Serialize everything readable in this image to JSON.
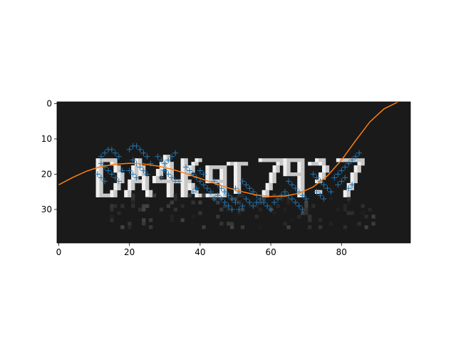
{
  "chart_data": {
    "type": "scatter",
    "title": "",
    "xlabel": "",
    "ylabel": "",
    "xlim": [
      -0.5,
      99.5
    ],
    "ylim": [
      39.5,
      -0.5
    ],
    "y_axis_inverted": true,
    "grid": false,
    "legend": "none",
    "x_ticks": [
      0,
      20,
      40,
      60,
      80
    ],
    "y_ticks": [
      0,
      10,
      20,
      30
    ],
    "background_image": {
      "description_kind": "grayscale captcha bitmap",
      "text": "DA4KgI79?7",
      "width": 100,
      "height": 40,
      "background_gray": "#1a1a1a",
      "text_color": "#f0f0f0"
    },
    "colors": {
      "markers": "#1f77b4",
      "curve": "#ff7f0e"
    },
    "marker_style": "plus",
    "series": [
      {
        "type": "scatter",
        "points": [
          [
            12,
            15
          ],
          [
            13,
            14
          ],
          [
            14,
            13
          ],
          [
            15,
            13
          ],
          [
            16,
            14
          ],
          [
            17,
            15
          ],
          [
            12,
            17
          ],
          [
            13,
            18
          ],
          [
            14,
            19
          ],
          [
            15,
            20
          ],
          [
            16,
            21
          ],
          [
            17,
            22
          ],
          [
            18,
            19
          ],
          [
            11,
            20
          ],
          [
            12,
            21
          ],
          [
            13,
            22
          ],
          [
            20,
            13
          ],
          [
            21,
            12
          ],
          [
            22,
            12
          ],
          [
            23,
            13
          ],
          [
            24,
            14
          ],
          [
            25,
            15
          ],
          [
            21,
            16
          ],
          [
            22,
            17
          ],
          [
            23,
            18
          ],
          [
            24,
            19
          ],
          [
            25,
            20
          ],
          [
            20,
            19
          ],
          [
            21,
            20
          ],
          [
            22,
            21
          ],
          [
            26,
            17
          ],
          [
            28,
            15
          ],
          [
            29,
            16
          ],
          [
            30,
            17
          ],
          [
            31,
            16
          ],
          [
            32,
            15
          ],
          [
            33,
            14
          ],
          [
            30,
            19
          ],
          [
            31,
            20
          ],
          [
            32,
            21
          ],
          [
            29,
            21
          ],
          [
            33,
            22
          ],
          [
            34,
            22
          ],
          [
            36,
            18
          ],
          [
            37,
            19
          ],
          [
            38,
            20
          ],
          [
            39,
            21
          ],
          [
            40,
            22
          ],
          [
            41,
            23
          ],
          [
            42,
            24
          ],
          [
            43,
            25
          ],
          [
            40,
            19
          ],
          [
            39,
            24
          ],
          [
            38,
            25
          ],
          [
            41,
            20
          ],
          [
            44,
            22
          ],
          [
            45,
            23
          ],
          [
            46,
            24
          ],
          [
            47,
            25
          ],
          [
            48,
            26
          ],
          [
            49,
            27
          ],
          [
            50,
            28
          ],
          [
            45,
            26
          ],
          [
            46,
            27
          ],
          [
            47,
            28
          ],
          [
            48,
            29
          ],
          [
            49,
            30
          ],
          [
            44,
            27
          ],
          [
            50,
            24
          ],
          [
            51,
            25
          ],
          [
            52,
            22
          ],
          [
            53,
            23
          ],
          [
            54,
            24
          ],
          [
            55,
            25
          ],
          [
            56,
            26
          ],
          [
            53,
            27
          ],
          [
            54,
            28
          ],
          [
            52,
            29
          ],
          [
            51,
            30
          ],
          [
            55,
            29
          ],
          [
            56,
            28
          ],
          [
            57,
            27
          ],
          [
            58,
            28
          ],
          [
            59,
            29
          ],
          [
            60,
            30
          ],
          [
            61,
            28
          ],
          [
            62,
            27
          ],
          [
            63,
            26
          ],
          [
            64,
            25
          ],
          [
            65,
            22
          ],
          [
            66,
            23
          ],
          [
            67,
            24
          ],
          [
            68,
            25
          ],
          [
            69,
            26
          ],
          [
            70,
            27
          ],
          [
            65,
            26
          ],
          [
            66,
            27
          ],
          [
            67,
            28
          ],
          [
            68,
            29
          ],
          [
            69,
            30
          ],
          [
            72,
            20
          ],
          [
            73,
            21
          ],
          [
            74,
            22
          ],
          [
            75,
            23
          ],
          [
            76,
            24
          ],
          [
            77,
            25
          ],
          [
            74,
            26
          ],
          [
            75,
            27
          ],
          [
            73,
            25
          ],
          [
            78,
            21
          ],
          [
            79,
            20
          ],
          [
            80,
            19
          ],
          [
            81,
            18
          ],
          [
            82,
            17
          ],
          [
            83,
            16
          ],
          [
            84,
            15
          ],
          [
            85,
            14
          ],
          [
            79,
            23
          ],
          [
            80,
            22
          ],
          [
            81,
            21
          ],
          [
            82,
            24
          ],
          [
            83,
            23
          ]
        ]
      },
      {
        "type": "line",
        "curve_type": "polynomial",
        "x": [
          0,
          4,
          8,
          12,
          16,
          20,
          24,
          28,
          32,
          36,
          40,
          44,
          48,
          52,
          56,
          60,
          64,
          68,
          72,
          76,
          80,
          84,
          88,
          92,
          96
        ],
        "y": [
          23.0,
          20.9,
          19.1,
          17.8,
          17.2,
          16.9,
          17.1,
          17.7,
          18.6,
          19.8,
          21.2,
          22.6,
          23.9,
          25.0,
          25.9,
          26.3,
          26.2,
          25.4,
          23.6,
          20.5,
          16.0,
          10.5,
          5.2,
          1.5,
          -0.5
        ]
      }
    ]
  }
}
